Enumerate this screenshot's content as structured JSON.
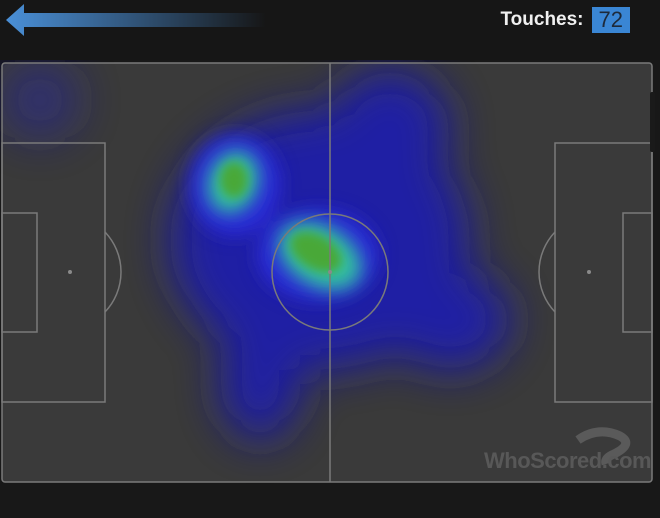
{
  "header": {
    "back_icon": "arrow-left-icon",
    "touches_label": "Touches:",
    "touches_value": "72",
    "accent": "#3a86d4"
  },
  "pitch": {
    "background": "#3a3a3a",
    "lines": "#7a7a7a"
  },
  "watermark": {
    "text": "WhoScored.com"
  }
}
